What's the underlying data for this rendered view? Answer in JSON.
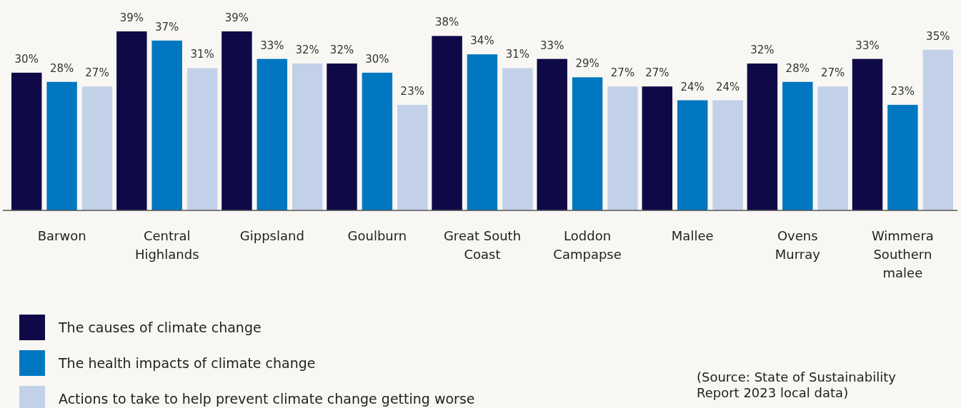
{
  "chart_data": {
    "type": "bar",
    "categories": [
      "Barwon",
      "Central\nHighlands",
      "Gippsland",
      "Goulburn",
      "Great South\nCoast",
      "Loddon\nCampapse",
      "Mallee",
      "Ovens\nMurray",
      "Wimmera\nSouthern\nmalee"
    ],
    "series": [
      {
        "name": "The causes of climate change",
        "color": "#0f0a47",
        "values": [
          30,
          39,
          39,
          32,
          38,
          33,
          27,
          32,
          33
        ],
        "value_labels": [
          "30%",
          "39%",
          "39%",
          "32%",
          "38%",
          "33%",
          "27%",
          "32%",
          "33%"
        ]
      },
      {
        "name": "The health impacts of climate change",
        "color": "#0077c0",
        "values": [
          28,
          37,
          33,
          30,
          34,
          29,
          24,
          28,
          23
        ],
        "value_labels": [
          "28%",
          "37%",
          "33%",
          "30%",
          "34%",
          "29%",
          "24%",
          "28%",
          "23%"
        ]
      },
      {
        "name": "Actions to take to help prevent climate change getting worse",
        "color": "#c3d1e8",
        "values": [
          27,
          31,
          32,
          23,
          31,
          27,
          24,
          27,
          35
        ],
        "value_labels": [
          "27%",
          "31%",
          "32%",
          "23%",
          "31%",
          "27%",
          "24%",
          "27%",
          "35%"
        ]
      }
    ],
    "legend": "bottom left",
    "annotations": [
      "(Source: State of Sustainability\nReport 2023 local data)"
    ]
  }
}
